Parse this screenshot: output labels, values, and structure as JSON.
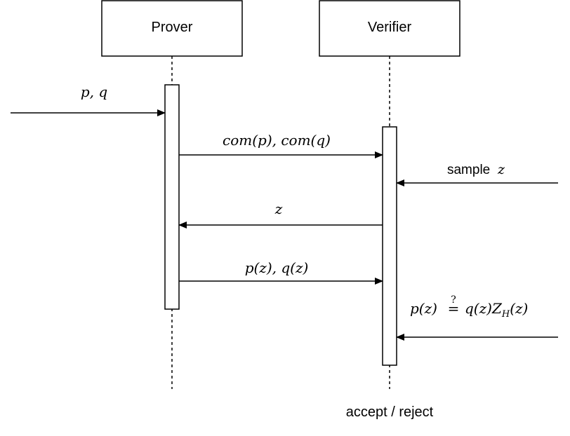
{
  "participants": {
    "prover": "Prover",
    "verifier": "Verifier"
  },
  "messages": {
    "input": "p, q",
    "commit": "com(p), com(q)",
    "sample_word": "sample",
    "sample_var": "z",
    "challenge": "z",
    "evaluations": "p(z), q(z)",
    "check": {
      "lhs": "p(z)",
      "relation": "=",
      "relation_mark": "?",
      "rhs_a": "q(z)Z",
      "rhs_sub": "H",
      "rhs_b": "(z)"
    },
    "result": "accept / reject"
  },
  "colors": {
    "stroke": "#000000",
    "background": "#ffffff"
  }
}
